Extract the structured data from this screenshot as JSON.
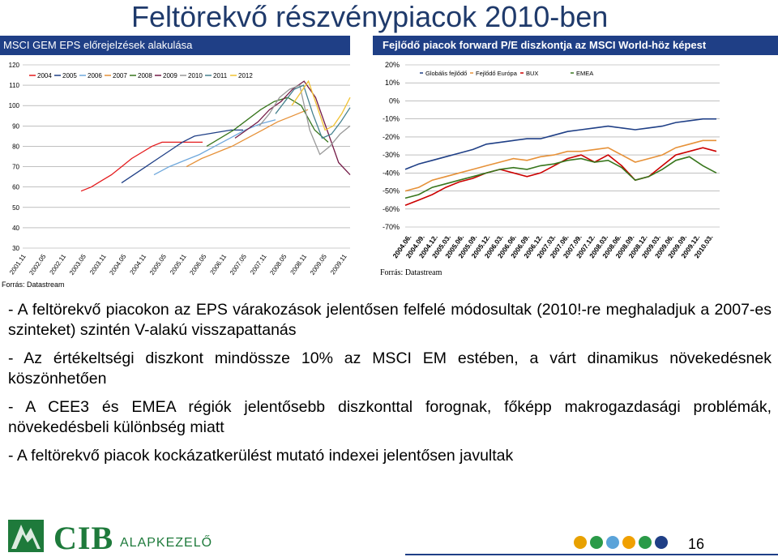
{
  "page": {
    "title": "Feltörekvő részvénypiacok 2010-ben",
    "page_number": "16"
  },
  "left_panel": {
    "header": "MSCI GEM EPS előrejelzések alakulása",
    "source": "Forrás: Datastream"
  },
  "right_panel": {
    "header": "Fejlődő piacok forward P/E diszkontja az MSCI World-höz képest",
    "source": "Forrás: Datastream"
  },
  "bullets": [
    "- A feltörekvő piacokon az EPS várakozások jelentősen felfelé módosultak (2010!-re meghaladjuk a 2007-es szinteket) szintén V-alakú visszapattanás",
    "- Az értékeltségi diszkont mindössze 10% az MSCI EM estében, a várt dinamikus növekedésnek köszönhetően",
    "- A CEE3 és EMEA régiók jelentősebb diszkonttal forognak, főképp makrogazdasági problémák, növekedésbeli különbség miatt",
    "- A feltörekvő piacok kockázatkerülést mutató indexei jelentősen javultak"
  ],
  "footer": {
    "brand": "CIB",
    "brand_sub": "ALAPKEZELŐ",
    "dot_colors": [
      "#e8a100",
      "#2a9a48",
      "#5aa3d9",
      "#f0a000",
      "#2a9a48",
      "#1f3f86"
    ]
  },
  "colors": {
    "header_bg": "#1f3f86",
    "title": "#1f3a6b",
    "brand_green": "#1e7a3b"
  },
  "chart_data": [
    {
      "type": "line",
      "ylim": [
        30,
        120
      ],
      "yticks": [
        "120",
        "110",
        "100",
        "90",
        "80",
        "70",
        "60",
        "50",
        "40",
        "30"
      ],
      "xticks": [
        "2001.11",
        "2002.05",
        "2002.11",
        "2003.05",
        "2003.11",
        "2004.05",
        "2004.11",
        "2005.05",
        "2005.11",
        "2006.05",
        "2006.11",
        "2007.05",
        "2007.11",
        "2008.05",
        "2008.11",
        "2009.05",
        "2009.11"
      ],
      "legend": [
        "2004",
        "2005",
        "2006",
        "2007",
        "2008",
        "2009",
        "2010",
        "2011",
        "2012"
      ],
      "grid": true,
      "series": [
        {
          "name": "2004",
          "color": "#e41a1c",
          "values": [
            58,
            60,
            63,
            66,
            70,
            74,
            77,
            80,
            82,
            82,
            82,
            82,
            82
          ]
        },
        {
          "name": "2005",
          "color": "#1f3f86",
          "values": [
            62,
            66,
            70,
            74,
            78,
            82,
            85,
            86,
            87,
            88,
            88
          ]
        },
        {
          "name": "2006",
          "color": "#6fa8dc",
          "values": [
            66,
            70,
            73,
            76,
            80,
            84,
            88,
            91,
            93
          ]
        },
        {
          "name": "2007",
          "color": "#e69138",
          "values": [
            70,
            74,
            77,
            80,
            84,
            88,
            92,
            95,
            98
          ]
        },
        {
          "name": "2008",
          "color": "#38761d",
          "values": [
            80,
            84,
            88,
            93,
            98,
            102,
            104,
            100,
            88,
            82
          ]
        },
        {
          "name": "2009",
          "color": "#741b47",
          "values": [
            84,
            88,
            92,
            98,
            102,
            108,
            112,
            104,
            88,
            72,
            66
          ]
        },
        {
          "name": "2010",
          "color": "#999999",
          "values": [
            90,
            96,
            104,
            108,
            110,
            88,
            76,
            80,
            86,
            90
          ]
        },
        {
          "name": "2011",
          "color": "#45818e",
          "values": [
            96,
            102,
            108,
            110,
            96,
            84,
            86,
            92,
            99
          ]
        },
        {
          "name": "2012",
          "color": "#f1c232",
          "values": [
            100,
            106,
            112,
            100,
            88,
            90,
            96,
            104
          ]
        }
      ]
    },
    {
      "type": "line",
      "ylim": [
        -70,
        20
      ],
      "yticks": [
        "20%",
        "10%",
        "0%",
        "-10%",
        "-20%",
        "-30%",
        "-40%",
        "-50%",
        "-60%",
        "-70%"
      ],
      "xticks": [
        "2004.06.",
        "2004.09.",
        "2004.12.",
        "2005.03.",
        "2005.06.",
        "2005.09.",
        "2005.12.",
        "2006.03.",
        "2006.06.",
        "2006.09.",
        "2006.12.",
        "2007.03.",
        "2007.06.",
        "2007.09.",
        "2007.12.",
        "2008.03.",
        "2008.06.",
        "2008.09.",
        "2008.12.",
        "2009.03.",
        "2009.06.",
        "2009.09.",
        "2009.12.",
        "2010.03."
      ],
      "legend": [
        "Globális fejlődő",
        "Fejlődő Európa",
        "BUX",
        "EMEA"
      ],
      "grid": true,
      "series": [
        {
          "name": "Globális fejlődő",
          "color": "#1f3f86",
          "values": [
            -38,
            -35,
            -33,
            -31,
            -29,
            -27,
            -24,
            -23,
            -22,
            -21,
            -21,
            -19,
            -17,
            -16,
            -15,
            -14,
            -15,
            -16,
            -15,
            -14,
            -12,
            -11,
            -10,
            -10
          ]
        },
        {
          "name": "Fejlődő Európa",
          "color": "#e69138",
          "values": [
            -50,
            -48,
            -44,
            -42,
            -40,
            -38,
            -36,
            -34,
            -32,
            -33,
            -31,
            -30,
            -28,
            -28,
            -27,
            -26,
            -30,
            -34,
            -32,
            -30,
            -26,
            -24,
            -22,
            -22
          ]
        },
        {
          "name": "BUX",
          "color": "#cc0000",
          "values": [
            -58,
            -55,
            -52,
            -48,
            -45,
            -43,
            -40,
            -38,
            -40,
            -42,
            -40,
            -36,
            -32,
            -30,
            -34,
            -30,
            -36,
            -44,
            -42,
            -36,
            -30,
            -28,
            -26,
            -28
          ]
        },
        {
          "name": "EMEA",
          "color": "#38761d",
          "values": [
            -54,
            -52,
            -48,
            -46,
            -44,
            -42,
            -40,
            -38,
            -37,
            -38,
            -36,
            -35,
            -33,
            -32,
            -34,
            -33,
            -37,
            -44,
            -42,
            -38,
            -33,
            -31,
            -36,
            -40
          ]
        }
      ]
    }
  ]
}
